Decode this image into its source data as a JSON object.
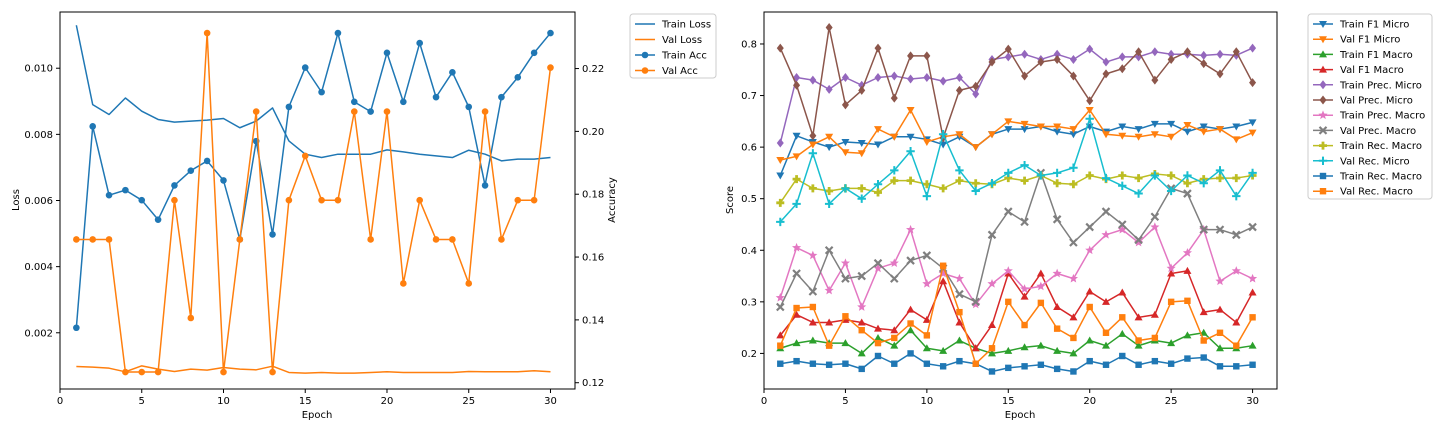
{
  "chart_data": [
    {
      "type": "line",
      "xlabel": "Epoch",
      "ylabel": "Loss",
      "y2label": "Accuracy",
      "x": [
        1,
        2,
        3,
        4,
        5,
        6,
        7,
        8,
        9,
        10,
        11,
        12,
        13,
        14,
        15,
        16,
        17,
        18,
        19,
        20,
        21,
        22,
        23,
        24,
        25,
        26,
        27,
        28,
        29,
        30
      ],
      "xlim": [
        0,
        31.5
      ],
      "xticks": [
        0,
        5,
        10,
        15,
        20,
        25,
        30
      ],
      "ylim": [
        0.0003,
        0.0117
      ],
      "yticks": [
        0.002,
        0.004,
        0.006,
        0.008,
        0.01
      ],
      "y2lim": [
        0.118,
        0.238
      ],
      "y2ticks": [
        0.12,
        0.14,
        0.16,
        0.18,
        0.2,
        0.22
      ],
      "grid": false,
      "legend": "outside-right",
      "series": [
        {
          "name": "Train Loss",
          "axis": "left",
          "marker": "none",
          "color": "#1f77b4",
          "values": [
            0.0113,
            0.0089,
            0.0086,
            0.0091,
            0.0087,
            0.00845,
            0.00837,
            0.0084,
            0.00843,
            0.00848,
            0.0082,
            0.0084,
            0.0088,
            0.0078,
            0.0074,
            0.0073,
            0.0074,
            0.0074,
            0.0074,
            0.00753,
            0.00747,
            0.0074,
            0.00735,
            0.0073,
            0.00752,
            0.0074,
            0.0072,
            0.00725,
            0.00725,
            0.0073
          ]
        },
        {
          "name": "Val Loss",
          "axis": "left",
          "marker": "none",
          "color": "#ff7f0e",
          "values": [
            0.00098,
            0.00096,
            0.00093,
            0.00082,
            0.001,
            0.0009,
            0.00083,
            0.0009,
            0.00087,
            0.00095,
            0.0009,
            0.00088,
            0.00099,
            0.0008,
            0.00078,
            0.0008,
            0.00078,
            0.00078,
            0.0008,
            0.00082,
            0.0008,
            0.0008,
            0.0008,
            0.0008,
            0.00083,
            0.00082,
            0.00082,
            0.00082,
            0.00085,
            0.00082
          ]
        },
        {
          "name": "Train Acc",
          "axis": "right",
          "marker": "o",
          "color": "#1f77b4",
          "values": [
            0.1375,
            0.2016,
            0.1797,
            0.1813,
            0.1781,
            0.1719,
            0.1828,
            0.1875,
            0.1906,
            0.1844,
            0.1656,
            0.1969,
            0.1672,
            0.2078,
            0.2203,
            0.2125,
            0.2313,
            0.2094,
            0.2063,
            0.225,
            0.2094,
            0.2281,
            0.2109,
            0.2188,
            0.2078,
            0.1828,
            0.2109,
            0.2172,
            0.225,
            0.2313
          ]
        },
        {
          "name": "Val Acc",
          "axis": "right",
          "marker": "o",
          "color": "#ff7f0e",
          "values": [
            0.1656,
            0.1656,
            0.1656,
            0.1234,
            0.1234,
            0.1234,
            0.1781,
            0.1406,
            0.2313,
            0.1234,
            0.1656,
            0.2063,
            0.1234,
            0.1781,
            0.1922,
            0.1781,
            0.1781,
            0.2063,
            0.1656,
            0.2063,
            0.1516,
            0.1781,
            0.1656,
            0.1656,
            0.1516,
            0.2063,
            0.1656,
            0.1781,
            0.1781,
            0.2203
          ]
        }
      ]
    },
    {
      "type": "line",
      "xlabel": "Epoch",
      "ylabel": "Score",
      "x": [
        1,
        2,
        3,
        4,
        5,
        6,
        7,
        8,
        9,
        10,
        11,
        12,
        13,
        14,
        15,
        16,
        17,
        18,
        19,
        20,
        21,
        22,
        23,
        24,
        25,
        26,
        27,
        28,
        29,
        30
      ],
      "xlim": [
        0,
        31.5
      ],
      "xticks": [
        0,
        5,
        10,
        15,
        20,
        25,
        30
      ],
      "ylim": [
        0.131,
        0.862
      ],
      "yticks": [
        0.2,
        0.3,
        0.4,
        0.5,
        0.6,
        0.7,
        0.8
      ],
      "grid": false,
      "legend": "outside-right",
      "series": [
        {
          "name": "Train F1 Micro",
          "marker": "v",
          "color": "#1f77b4",
          "values": [
            0.545,
            0.622,
            0.61,
            0.6,
            0.61,
            0.608,
            0.605,
            0.62,
            0.62,
            0.615,
            0.605,
            0.62,
            0.6,
            0.625,
            0.635,
            0.635,
            0.64,
            0.63,
            0.625,
            0.64,
            0.63,
            0.64,
            0.635,
            0.645,
            0.645,
            0.63,
            0.64,
            0.635,
            0.64,
            0.648
          ]
        },
        {
          "name": "Val F1 Micro",
          "marker": "v",
          "color": "#ff7f0e",
          "values": [
            0.575,
            0.582,
            0.605,
            0.62,
            0.59,
            0.588,
            0.635,
            0.62,
            0.672,
            0.61,
            0.62,
            0.625,
            0.6,
            0.625,
            0.65,
            0.645,
            0.64,
            0.64,
            0.635,
            0.672,
            0.625,
            0.622,
            0.62,
            0.625,
            0.62,
            0.643,
            0.63,
            0.635,
            0.615,
            0.628
          ]
        },
        {
          "name": "Train F1 Macro",
          "marker": "^",
          "color": "#2ca02c",
          "values": [
            0.21,
            0.22,
            0.225,
            0.22,
            0.22,
            0.2,
            0.23,
            0.215,
            0.245,
            0.21,
            0.205,
            0.225,
            0.21,
            0.2,
            0.205,
            0.212,
            0.215,
            0.205,
            0.2,
            0.225,
            0.215,
            0.238,
            0.215,
            0.225,
            0.22,
            0.235,
            0.24,
            0.21,
            0.21,
            0.215
          ]
        },
        {
          "name": "Val F1 Macro",
          "marker": "^",
          "color": "#d62728",
          "values": [
            0.235,
            0.275,
            0.26,
            0.26,
            0.265,
            0.26,
            0.248,
            0.245,
            0.285,
            0.265,
            0.34,
            0.26,
            0.21,
            0.255,
            0.355,
            0.31,
            0.355,
            0.29,
            0.27,
            0.32,
            0.3,
            0.318,
            0.27,
            0.275,
            0.355,
            0.36,
            0.28,
            0.285,
            0.26,
            0.318
          ]
        },
        {
          "name": "Train Prec. Micro",
          "marker": "D",
          "color": "#9467bd",
          "values": [
            0.608,
            0.735,
            0.73,
            0.712,
            0.735,
            0.72,
            0.735,
            0.738,
            0.732,
            0.735,
            0.728,
            0.735,
            0.703,
            0.77,
            0.775,
            0.78,
            0.77,
            0.78,
            0.77,
            0.79,
            0.765,
            0.775,
            0.775,
            0.785,
            0.78,
            0.78,
            0.778,
            0.78,
            0.778,
            0.792
          ]
        },
        {
          "name": "Val Prec. Micro",
          "marker": "D",
          "color": "#8c564b",
          "values": [
            0.792,
            0.72,
            0.622,
            0.832,
            0.682,
            0.71,
            0.792,
            0.695,
            0.777,
            0.777,
            0.618,
            0.71,
            0.718,
            0.765,
            0.79,
            0.738,
            0.765,
            0.77,
            0.738,
            0.69,
            0.742,
            0.752,
            0.785,
            0.73,
            0.77,
            0.785,
            0.762,
            0.742,
            0.785,
            0.725
          ]
        },
        {
          "name": "Train Prec. Macro",
          "marker": "*",
          "color": "#e377c2",
          "values": [
            0.308,
            0.405,
            0.39,
            0.322,
            0.375,
            0.29,
            0.365,
            0.375,
            0.44,
            0.335,
            0.355,
            0.345,
            0.295,
            0.335,
            0.36,
            0.325,
            0.33,
            0.355,
            0.345,
            0.4,
            0.43,
            0.44,
            0.415,
            0.445,
            0.365,
            0.395,
            0.44,
            0.34,
            0.36,
            0.345
          ]
        },
        {
          "name": "Val Prec. Macro",
          "marker": "x",
          "color": "#7f7f7f",
          "values": [
            0.29,
            0.355,
            0.32,
            0.4,
            0.345,
            0.35,
            0.375,
            0.345,
            0.38,
            0.39,
            0.365,
            0.315,
            0.3,
            0.43,
            0.475,
            0.455,
            0.55,
            0.46,
            0.415,
            0.445,
            0.475,
            0.45,
            0.42,
            0.465,
            0.52,
            0.51,
            0.44,
            0.44,
            0.43,
            0.445
          ]
        },
        {
          "name": "Train Rec. Macro",
          "marker": "P",
          "color": "#bcbd22",
          "values": [
            0.492,
            0.538,
            0.52,
            0.515,
            0.52,
            0.52,
            0.512,
            0.535,
            0.535,
            0.528,
            0.52,
            0.535,
            0.53,
            0.528,
            0.54,
            0.535,
            0.545,
            0.53,
            0.528,
            0.545,
            0.538,
            0.545,
            0.54,
            0.548,
            0.545,
            0.53,
            0.538,
            0.54,
            0.54,
            0.545
          ]
        },
        {
          "name": "Val Rec. Micro",
          "marker": "+",
          "color": "#17becf",
          "values": [
            0.455,
            0.49,
            0.588,
            0.49,
            0.52,
            0.5,
            0.528,
            0.555,
            0.592,
            0.505,
            0.625,
            0.555,
            0.515,
            0.53,
            0.55,
            0.565,
            0.545,
            0.55,
            0.56,
            0.655,
            0.54,
            0.525,
            0.51,
            0.545,
            0.515,
            0.545,
            0.53,
            0.555,
            0.505,
            0.55
          ]
        },
        {
          "name": "Train Rec. Macro",
          "marker": "s",
          "color": "#1f77b4",
          "values": [
            0.18,
            0.185,
            0.18,
            0.178,
            0.18,
            0.17,
            0.195,
            0.18,
            0.2,
            0.18,
            0.175,
            0.185,
            0.18,
            0.165,
            0.172,
            0.175,
            0.178,
            0.17,
            0.165,
            0.185,
            0.178,
            0.195,
            0.178,
            0.185,
            0.18,
            0.19,
            0.192,
            0.175,
            0.175,
            0.178
          ]
        },
        {
          "name": "Val Rec. Macro",
          "marker": "s",
          "color": "#ff7f0e",
          "values": [
            0.215,
            0.288,
            0.29,
            0.215,
            0.272,
            0.245,
            0.22,
            0.23,
            0.258,
            0.235,
            0.37,
            0.28,
            0.18,
            0.21,
            0.3,
            0.255,
            0.298,
            0.248,
            0.23,
            0.29,
            0.24,
            0.27,
            0.225,
            0.23,
            0.3,
            0.302,
            0.225,
            0.24,
            0.215,
            0.27
          ]
        }
      ]
    }
  ]
}
